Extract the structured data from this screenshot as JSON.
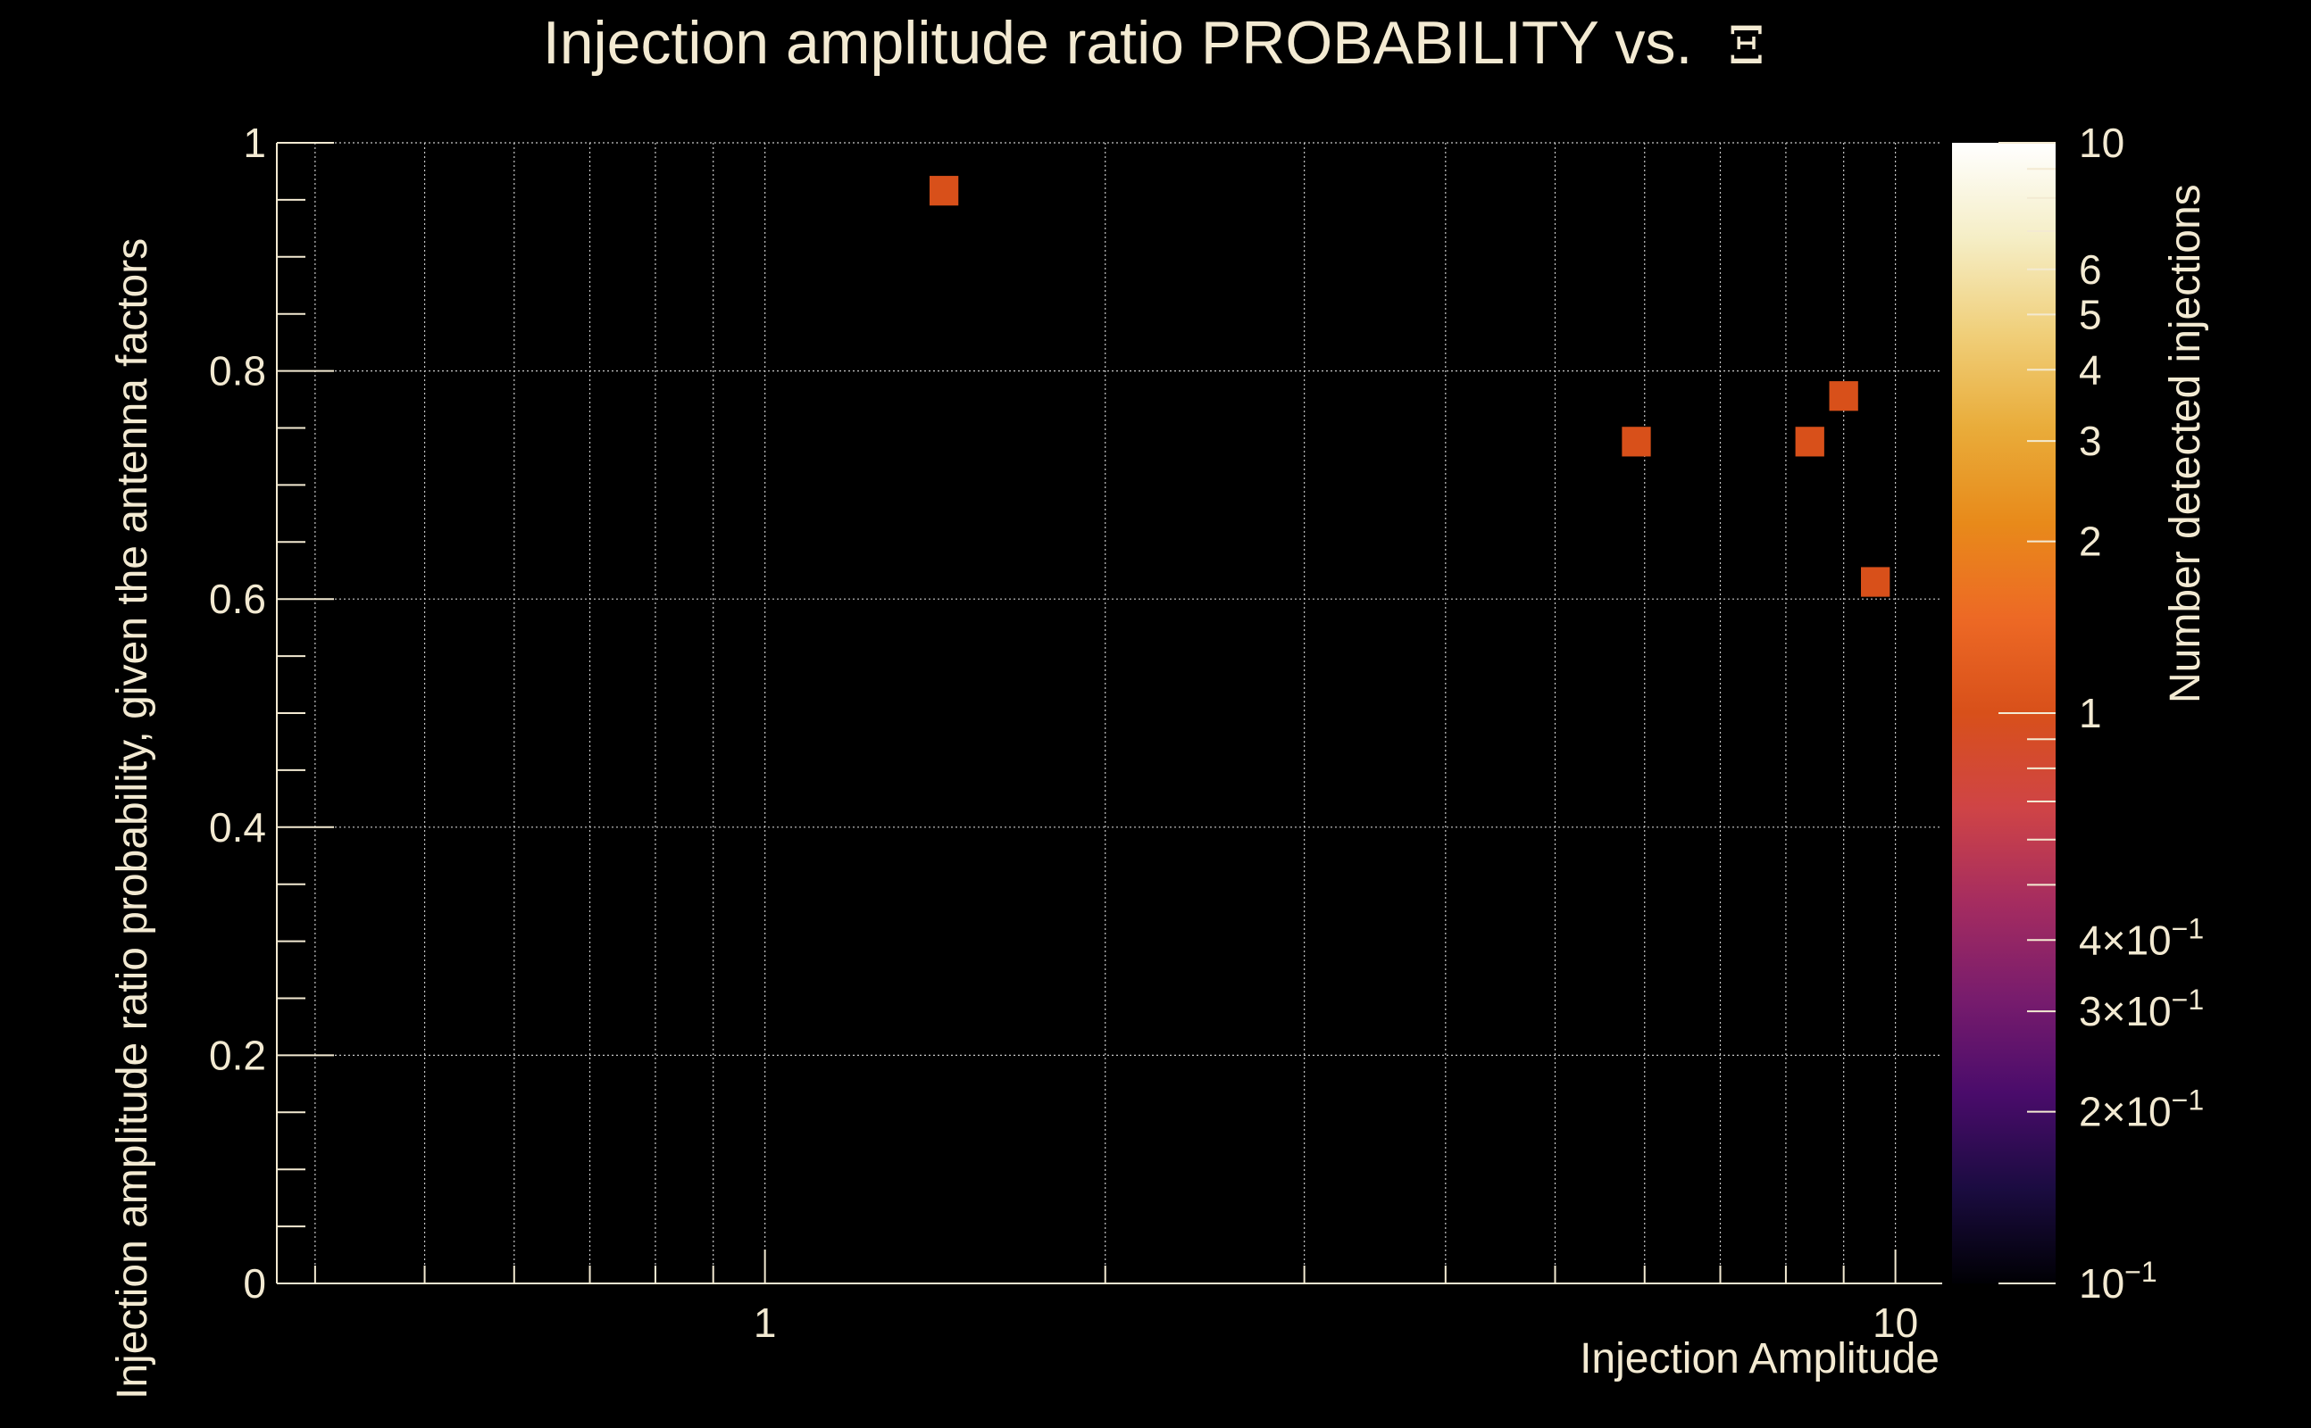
{
  "chart_data": {
    "type": "heatmap",
    "title": "Injection amplitude ratio PROBABILITY vs.",
    "title_symbol": "Ξ",
    "xlabel": "Injection Amplitude",
    "ylabel": "Injection amplitude ratio probability, given the antenna factors",
    "zlabel": "Number detected injections",
    "x_scale": "log",
    "xlim": [
      0.37,
      11
    ],
    "ylim": [
      0,
      1
    ],
    "x_ticks": [
      {
        "value": 1,
        "label": "1"
      },
      {
        "value": 10,
        "label": "10"
      }
    ],
    "y_ticks": [
      {
        "value": 0,
        "label": "0"
      },
      {
        "value": 0.2,
        "label": "0.2"
      },
      {
        "value": 0.4,
        "label": "0.4"
      },
      {
        "value": 0.6,
        "label": "0.6"
      },
      {
        "value": 0.8,
        "label": "0.8"
      },
      {
        "value": 1,
        "label": "1"
      }
    ],
    "z_scale": "log",
    "zlim": [
      0.1,
      10
    ],
    "z_ticks": [
      {
        "value": 0.1,
        "label": "10",
        "exp": "−1"
      },
      {
        "value": 0.2,
        "label": "2×10",
        "exp": "−1"
      },
      {
        "value": 0.3,
        "label": "3×10",
        "exp": "−1"
      },
      {
        "value": 0.4,
        "label": "4×10",
        "exp": "−1"
      },
      {
        "value": 1,
        "label": "1",
        "exp": ""
      },
      {
        "value": 2,
        "label": "2",
        "exp": ""
      },
      {
        "value": 3,
        "label": "3",
        "exp": ""
      },
      {
        "value": 4,
        "label": "4",
        "exp": ""
      },
      {
        "value": 5,
        "label": "5",
        "exp": ""
      },
      {
        "value": 6,
        "label": "6",
        "exp": ""
      },
      {
        "value": 10,
        "label": "10",
        "exp": ""
      }
    ],
    "grid": true,
    "colormap": [
      "#000004",
      "#1b0c41",
      "#4a0c6b",
      "#781c6d",
      "#a52c60",
      "#cf4446",
      "#d8501a",
      "#ed6925",
      "#e88a1a",
      "#e9ac3a",
      "#f0cf7a",
      "#f5eec6",
      "#ffffff"
    ],
    "bins": [
      {
        "x": 1.44,
        "y": 0.958,
        "count": 1
      },
      {
        "x": 5.9,
        "y": 0.738,
        "count": 1
      },
      {
        "x": 8.4,
        "y": 0.738,
        "count": 1
      },
      {
        "x": 9.0,
        "y": 0.778,
        "count": 1
      },
      {
        "x": 9.6,
        "y": 0.615,
        "count": 1
      }
    ]
  },
  "colors": {
    "background": "#000000",
    "foreground": "#f3ead2",
    "grid": "#c8c8c8",
    "bin": "#d8501a"
  }
}
